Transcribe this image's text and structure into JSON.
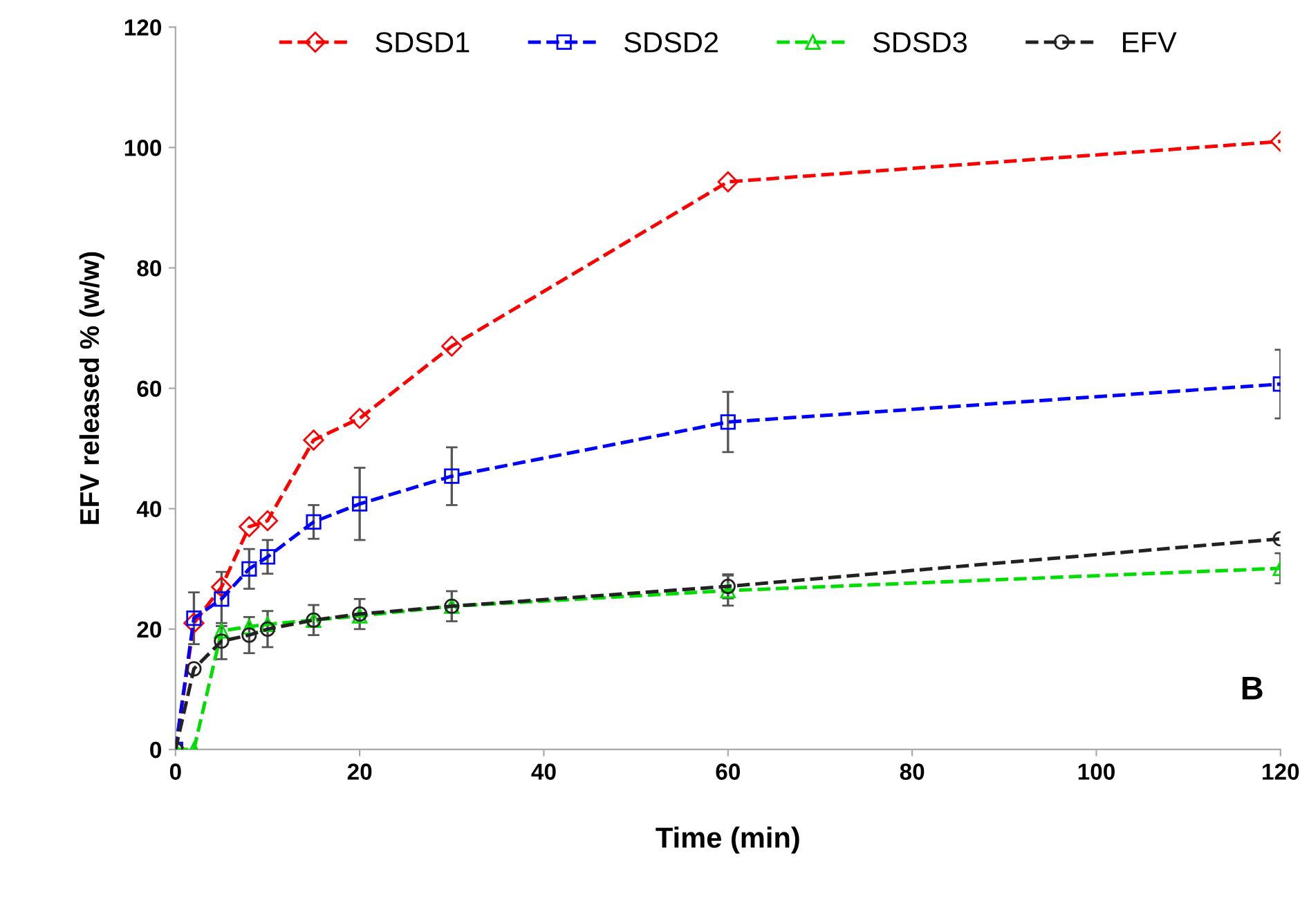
{
  "chart_data": {
    "type": "line",
    "xlabel": "Time (min)",
    "ylabel": "EFV released % (w/w)",
    "x": [
      0,
      2,
      5,
      8,
      10,
      15,
      20,
      30,
      60,
      120
    ],
    "xlim": [
      0,
      120
    ],
    "xticks": [
      0,
      20,
      40,
      60,
      80,
      100,
      120
    ],
    "ylim": [
      0,
      120
    ],
    "yticks": [
      0,
      20,
      40,
      60,
      80,
      100,
      120
    ],
    "grid": false,
    "legend": "top",
    "line_style": "dashed",
    "annotations": [
      "B"
    ],
    "series": [
      {
        "name": "SDSD1",
        "color": "#ff0000",
        "marker": "diamond",
        "values": [
          0,
          21,
          27,
          37,
          38,
          51.4,
          55,
          67,
          94.3,
          101
        ]
      },
      {
        "name": "SDSD2",
        "color": "#0000ff",
        "marker": "square",
        "values": [
          0,
          21.8,
          25,
          30,
          32,
          37.8,
          40.8,
          45.4,
          54.4,
          60.7
        ],
        "errors": [
          null,
          4.3,
          4.5,
          3.3,
          2.8,
          2.8,
          6,
          4.8,
          5,
          5.7
        ]
      },
      {
        "name": "SDSD3",
        "color": "#00dd00",
        "marker": "triangle",
        "values": [
          0,
          0,
          19.7,
          20.4,
          20.8,
          21.5,
          22.2,
          23.8,
          26.4,
          30.1
        ],
        "errors": [
          null,
          null,
          null,
          null,
          null,
          null,
          null,
          null,
          2.5,
          2.5
        ]
      },
      {
        "name": "EFV",
        "color": "#222222",
        "marker": "circle",
        "values": [
          0,
          13.4,
          18,
          19,
          20,
          21.5,
          22.5,
          23.8,
          27.1,
          35
        ],
        "errors": [
          null,
          null,
          3,
          3,
          3,
          2.5,
          2.5,
          2.5,
          2,
          null
        ]
      }
    ]
  }
}
